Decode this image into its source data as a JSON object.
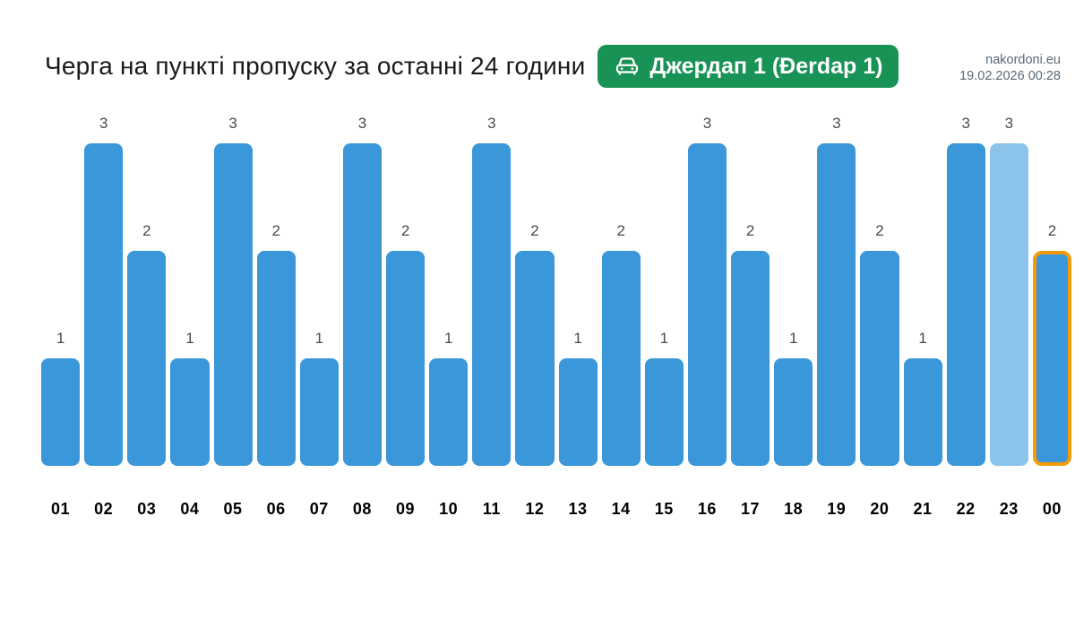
{
  "header": {
    "site": "nakordoni.eu",
    "timestamp": "19.02.2026 00:28"
  },
  "title": "Черга на пункті пропуску за останні 24 години",
  "badge": {
    "label": "Джердап 1 (Đerdap 1)",
    "icon": "car-icon",
    "background_color": "#189255",
    "text_color": "#ffffff"
  },
  "chart_data": {
    "type": "bar",
    "title": "Черга на пункті пропуску за останні 24 години",
    "categories": [
      "01",
      "02",
      "03",
      "04",
      "05",
      "06",
      "07",
      "08",
      "09",
      "10",
      "11",
      "12",
      "13",
      "14",
      "15",
      "16",
      "17",
      "18",
      "19",
      "20",
      "21",
      "22",
      "23",
      "00"
    ],
    "values": [
      1,
      3,
      2,
      1,
      3,
      2,
      1,
      3,
      2,
      1,
      3,
      2,
      1,
      2,
      1,
      3,
      2,
      1,
      3,
      2,
      1,
      3,
      3,
      2
    ],
    "xlabel": "",
    "ylabel": "",
    "ylim": [
      0,
      3
    ],
    "grid": false,
    "legend": false,
    "value_labels_shown": true,
    "bar_color": "#3a97d9",
    "muted_bar_color": "#8cc3ea",
    "muted_category": "23",
    "highlighted_category": "00",
    "highlight_border_color": "#f59b0a",
    "value_label_color": "#4a4a4a",
    "x_label_color": "#000000"
  }
}
